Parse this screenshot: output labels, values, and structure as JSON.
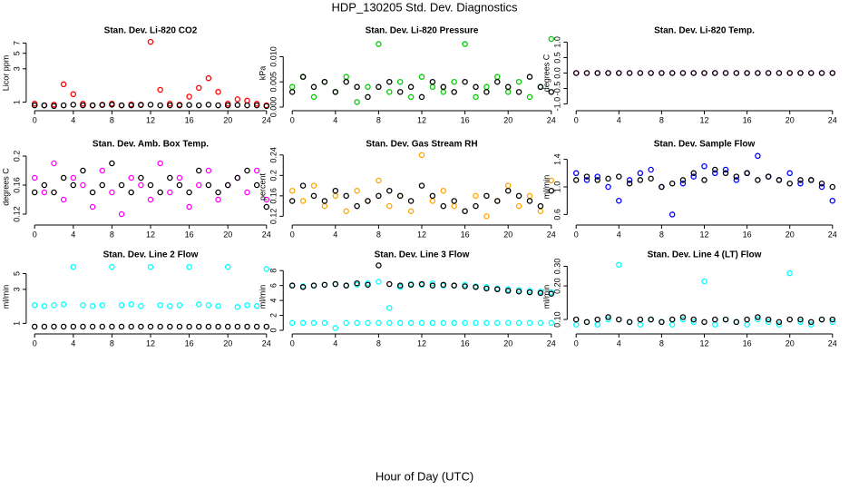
{
  "title": "HDP_130205  Std. Dev. Diagnostics",
  "x_label": "Hour of Day (UTC)",
  "chart_data": [
    {
      "type": "scatter",
      "title": "Stan. Dev. Li-820 CO2",
      "y_label": "Licor ppm",
      "log_y": true,
      "x": [
        0,
        1,
        2,
        3,
        4,
        5,
        6,
        7,
        8,
        9,
        10,
        11,
        12,
        13,
        14,
        15,
        16,
        17,
        18,
        19,
        20,
        21,
        22,
        23,
        24
      ],
      "xlim": [
        -0.5,
        24.5
      ],
      "xticks": [
        0,
        4,
        8,
        12,
        16,
        20,
        24
      ],
      "ylim": [
        0.85,
        8
      ],
      "yticks": [
        1,
        3,
        5,
        7
      ],
      "series": [
        {
          "color": "#ff0000",
          "values": [
            0.95,
            0.9,
            0.92,
            1.8,
            1.3,
            0.95,
            0.9,
            0.92,
            0.95,
            0.9,
            0.93,
            0.92,
            7.3,
            1.5,
            0.95,
            0.92,
            1.2,
            1.6,
            2.2,
            1.4,
            0.95,
            1.1,
            1.05,
            0.95,
            0.9
          ]
        },
        {
          "color": "#000000",
          "values": [
            0.9,
            0.9,
            0.88,
            0.9,
            0.92,
            0.9,
            0.9,
            0.91,
            0.92,
            0.9,
            0.9,
            0.91,
            0.92,
            0.9,
            0.9,
            0.9,
            0.91,
            0.9,
            0.92,
            0.9,
            0.9,
            0.91,
            0.9,
            0.9,
            0.88
          ]
        }
      ]
    },
    {
      "type": "scatter",
      "title": "Stan. Dev. Li-820 Pressure",
      "y_label": "kPa",
      "log_y": false,
      "x": [
        0,
        1,
        2,
        3,
        4,
        5,
        6,
        7,
        8,
        9,
        10,
        11,
        12,
        13,
        14,
        15,
        16,
        17,
        18,
        19,
        20,
        21,
        22,
        23,
        24
      ],
      "xlim": [
        -0.5,
        24.5
      ],
      "xticks": [
        0,
        4,
        8,
        12,
        16,
        20,
        24
      ],
      "ylim": [
        0,
        0.0135
      ],
      "yticks": [
        {
          "value": 0,
          "label": "0.000"
        },
        {
          "value": 0.005,
          "label": "0.005"
        },
        {
          "value": 0.01,
          "label": "0.010"
        }
      ],
      "series": [
        {
          "color": "#00cc00",
          "values": [
            0.004,
            0.006,
            0.002,
            0.005,
            0.003,
            0.006,
            0.001,
            0.004,
            0.0125,
            0.003,
            0.005,
            0.002,
            0.006,
            0.004,
            0.003,
            0.005,
            0.0125,
            0.002,
            0.004,
            0.006,
            0.003,
            0.005,
            0.002,
            0.004,
            0.0135
          ]
        },
        {
          "color": "#000000",
          "values": [
            0.003,
            0.006,
            0.004,
            0.005,
            0.003,
            0.005,
            0.004,
            0.002,
            0.004,
            0.005,
            0.003,
            0.004,
            0.002,
            0.005,
            0.004,
            0.003,
            0.005,
            0.004,
            0.003,
            0.005,
            0.004,
            0.003,
            0.006,
            0.004,
            0.003
          ]
        }
      ]
    },
    {
      "type": "scatter",
      "title": "Stan. Dev. Li-820 Temp.",
      "y_label": "degrees C",
      "log_y": false,
      "x": [
        0,
        1,
        2,
        3,
        4,
        5,
        6,
        7,
        8,
        9,
        10,
        11,
        12,
        13,
        14,
        15,
        16,
        17,
        18,
        19,
        20,
        21,
        22,
        23,
        24
      ],
      "xlim": [
        -0.5,
        24.5
      ],
      "xticks": [
        0,
        4,
        8,
        12,
        16,
        20,
        24
      ],
      "ylim": [
        -1.1,
        1.1
      ],
      "yticks": [
        {
          "value": -1,
          "label": "-1.0"
        },
        {
          "value": -0.5,
          "label": "-0.5"
        },
        {
          "value": 0,
          "label": "0.0"
        },
        {
          "value": 0.5,
          "label": "0.5"
        },
        {
          "value": 1,
          "label": "1.0"
        }
      ],
      "series": [
        {
          "color": "#ff00ff",
          "values": [
            0,
            0,
            0,
            0,
            0,
            0,
            0,
            0,
            0,
            0,
            0,
            0,
            0,
            0,
            0,
            0,
            0,
            0,
            0,
            0,
            0,
            0,
            0,
            0,
            0
          ]
        },
        {
          "color": "#000000",
          "values": [
            0,
            0,
            0,
            0,
            0,
            0,
            0,
            0,
            0,
            0,
            0,
            0,
            0,
            0,
            0,
            0,
            0,
            0,
            0,
            0,
            0,
            0,
            0,
            0,
            0
          ]
        }
      ]
    },
    {
      "type": "scatter",
      "title": "Stan. Dev. Amb. Box Temp.",
      "y_label": "degrees C",
      "log_y": false,
      "x": [
        0,
        1,
        2,
        3,
        4,
        5,
        6,
        7,
        8,
        9,
        10,
        11,
        12,
        13,
        14,
        15,
        16,
        17,
        18,
        19,
        20,
        21,
        22,
        23,
        24
      ],
      "xlim": [
        -0.5,
        24.5
      ],
      "xticks": [
        0,
        4,
        8,
        12,
        16,
        20,
        24
      ],
      "ylim": [
        0.11,
        0.205
      ],
      "yticks": [
        0.12,
        0.16,
        0.2
      ],
      "series": [
        {
          "color": "#ff00ff",
          "values": [
            0.17,
            0.15,
            0.19,
            0.14,
            0.17,
            0.16,
            0.13,
            0.18,
            0.15,
            0.12,
            0.17,
            0.16,
            0.14,
            0.19,
            0.15,
            0.17,
            0.13,
            0.16,
            0.18,
            0.14,
            0.16,
            0.17,
            0.15,
            0.18,
            0.14
          ]
        },
        {
          "color": "#000000",
          "values": [
            0.15,
            0.16,
            0.15,
            0.17,
            0.16,
            0.18,
            0.15,
            0.16,
            0.19,
            0.16,
            0.15,
            0.17,
            0.16,
            0.15,
            0.17,
            0.16,
            0.15,
            0.18,
            0.16,
            0.15,
            0.16,
            0.17,
            0.18,
            0.16,
            0.13
          ]
        }
      ]
    },
    {
      "type": "scatter",
      "title": "Stan. Dev. Gas Stream RH",
      "y_label": "percent",
      "log_y": false,
      "x": [
        0,
        1,
        2,
        3,
        4,
        5,
        6,
        7,
        8,
        9,
        10,
        11,
        12,
        13,
        14,
        15,
        16,
        17,
        18,
        19,
        20,
        21,
        22,
        23,
        24
      ],
      "xlim": [
        -0.5,
        24.5
      ],
      "xticks": [
        0,
        4,
        8,
        12,
        16,
        20,
        24
      ],
      "ylim": [
        0.11,
        0.245
      ],
      "yticks": [
        0.12,
        0.16,
        0.2,
        0.24
      ],
      "series": [
        {
          "color": "#ffa500",
          "values": [
            0.17,
            0.15,
            0.18,
            0.14,
            0.16,
            0.13,
            0.17,
            0.15,
            0.19,
            0.14,
            0.16,
            0.13,
            0.24,
            0.15,
            0.17,
            0.14,
            0.13,
            0.16,
            0.12,
            0.15,
            0.18,
            0.14,
            0.16,
            0.13,
            0.19
          ]
        },
        {
          "color": "#000000",
          "values": [
            0.15,
            0.18,
            0.16,
            0.15,
            0.17,
            0.16,
            0.14,
            0.15,
            0.16,
            0.17,
            0.16,
            0.15,
            0.18,
            0.16,
            0.14,
            0.15,
            0.13,
            0.14,
            0.16,
            0.15,
            0.17,
            0.16,
            0.15,
            0.14,
            0.17
          ]
        }
      ]
    },
    {
      "type": "scatter",
      "title": "Stan. Dev. Sample Flow",
      "y_label": "ml/min",
      "log_y": false,
      "x": [
        0,
        1,
        2,
        3,
        4,
        5,
        6,
        7,
        8,
        9,
        10,
        11,
        12,
        13,
        14,
        15,
        16,
        17,
        18,
        19,
        20,
        21,
        22,
        23,
        24
      ],
      "xlim": [
        -0.5,
        24.5
      ],
      "xticks": [
        0,
        4,
        8,
        12,
        16,
        20,
        24
      ],
      "ylim": [
        0.5,
        1.5
      ],
      "yticks": [
        0.6,
        {
          "value": 1,
          "label": "1.0"
        },
        1.4
      ],
      "series": [
        {
          "color": "#0000ff",
          "values": [
            1.2,
            1.1,
            1.15,
            1.0,
            0.8,
            1.1,
            1.2,
            1.25,
            1.0,
            0.6,
            1.05,
            1.15,
            1.3,
            1.2,
            1.25,
            1.1,
            1.2,
            1.45,
            1.15,
            1.1,
            1.2,
            1.05,
            1.1,
            1.0,
            0.8
          ]
        },
        {
          "color": "#000000",
          "values": [
            1.1,
            1.15,
            1.1,
            1.12,
            1.15,
            1.05,
            1.1,
            1.12,
            1.0,
            1.05,
            1.1,
            1.2,
            1.1,
            1.25,
            1.2,
            1.15,
            1.2,
            1.1,
            1.15,
            1.1,
            1.05,
            1.1,
            1.1,
            1.05,
            1.0
          ]
        }
      ]
    },
    {
      "type": "scatter",
      "title": "Stan. Dev. Line 2 Flow",
      "y_label": "ml/min",
      "log_y": true,
      "x": [
        0,
        1,
        2,
        3,
        4,
        5,
        6,
        7,
        8,
        9,
        10,
        11,
        12,
        13,
        14,
        15,
        16,
        17,
        18,
        19,
        20,
        21,
        22,
        23,
        24
      ],
      "xlim": [
        -0.5,
        24.5
      ],
      "xticks": [
        0,
        4,
        8,
        12,
        16,
        20,
        24
      ],
      "ylim": [
        0.8,
        7
      ],
      "yticks": [
        1,
        3,
        5
      ],
      "series": [
        {
          "color": "#00ffff",
          "values": [
            1.8,
            1.75,
            1.8,
            1.85,
            6.2,
            1.8,
            1.75,
            1.8,
            6.2,
            1.8,
            1.85,
            1.75,
            6.2,
            1.8,
            1.75,
            1.8,
            6.2,
            1.85,
            1.8,
            1.75,
            6.2,
            1.7,
            1.8,
            1.75,
            5.8
          ]
        },
        {
          "color": "#000000",
          "values": [
            0.9,
            0.9,
            0.9,
            0.9,
            0.9,
            0.9,
            0.9,
            0.9,
            0.9,
            0.9,
            0.9,
            0.9,
            0.9,
            0.9,
            0.9,
            0.9,
            0.9,
            0.9,
            0.9,
            0.9,
            0.9,
            0.9,
            0.9,
            0.9,
            0.9
          ]
        }
      ]
    },
    {
      "type": "scatter",
      "title": "Stan. Dev. Line 3 Flow",
      "y_label": "ml/min",
      "log_y": false,
      "x": [
        0,
        1,
        2,
        3,
        4,
        5,
        6,
        7,
        8,
        9,
        10,
        11,
        12,
        13,
        14,
        15,
        16,
        17,
        18,
        19,
        20,
        21,
        22,
        23,
        24
      ],
      "xlim": [
        -0.5,
        24.5
      ],
      "xticks": [
        0,
        4,
        8,
        12,
        16,
        20,
        24
      ],
      "ylim": [
        0,
        9
      ],
      "yticks": [
        0,
        2,
        4,
        6,
        8
      ],
      "series": [
        {
          "color": "#00ffff",
          "values": [
            6,
            5.9,
            6,
            6.1,
            6.2,
            6,
            6.1,
            6.3,
            6.5,
            3,
            5.8,
            6.2,
            6.1,
            6.3,
            6,
            6,
            6.1,
            5.9,
            5.8,
            5.6,
            5.5,
            5.4,
            5.3,
            5.2,
            5.1
          ]
        },
        {
          "color": "#00ffff",
          "values": [
            1,
            1,
            1,
            1,
            0.3,
            1,
            1,
            1,
            1,
            1,
            1,
            1,
            1,
            1,
            1,
            1,
            1,
            1,
            1,
            1,
            1,
            1,
            1,
            1,
            1
          ]
        },
        {
          "color": "#000000",
          "values": [
            6,
            5.8,
            6,
            6.1,
            6.2,
            6,
            6.3,
            6.1,
            8.7,
            6.2,
            6,
            6.1,
            6.2,
            6,
            6.1,
            6,
            5.9,
            5.8,
            5.6,
            5.5,
            5.3,
            5.2,
            5.1,
            5,
            4.9
          ]
        }
      ]
    },
    {
      "type": "scatter",
      "title": "Stan. Dev. Line 4 (LT) Flow",
      "y_label": "ml/min",
      "log_y": true,
      "x": [
        0,
        1,
        2,
        3,
        4,
        5,
        6,
        7,
        8,
        9,
        10,
        11,
        12,
        13,
        14,
        15,
        16,
        17,
        18,
        19,
        20,
        21,
        22,
        23,
        24
      ],
      "xlim": [
        -0.5,
        24.5
      ],
      "xticks": [
        0,
        4,
        8,
        12,
        16,
        20,
        24
      ],
      "ylim": [
        0.08,
        0.32
      ],
      "yticks": [
        {
          "value": 0.1,
          "label": "0.10"
        },
        {
          "value": 0.2,
          "label": "0.20"
        },
        {
          "value": 0.3,
          "label": "0.30"
        }
      ],
      "series": [
        {
          "color": "#00ffff",
          "values": [
            0.09,
            0.095,
            0.09,
            0.1,
            0.31,
            0.095,
            0.09,
            0.1,
            0.095,
            0.09,
            0.1,
            0.095,
            0.22,
            0.09,
            0.1,
            0.095,
            0.09,
            0.1,
            0.095,
            0.09,
            0.26,
            0.095,
            0.09,
            0.1,
            0.095
          ]
        },
        {
          "color": "#000000",
          "values": [
            0.1,
            0.095,
            0.1,
            0.105,
            0.1,
            0.095,
            0.1,
            0.1,
            0.095,
            0.1,
            0.105,
            0.1,
            0.095,
            0.1,
            0.1,
            0.095,
            0.1,
            0.105,
            0.1,
            0.095,
            0.1,
            0.1,
            0.095,
            0.1,
            0.1
          ]
        }
      ]
    }
  ]
}
